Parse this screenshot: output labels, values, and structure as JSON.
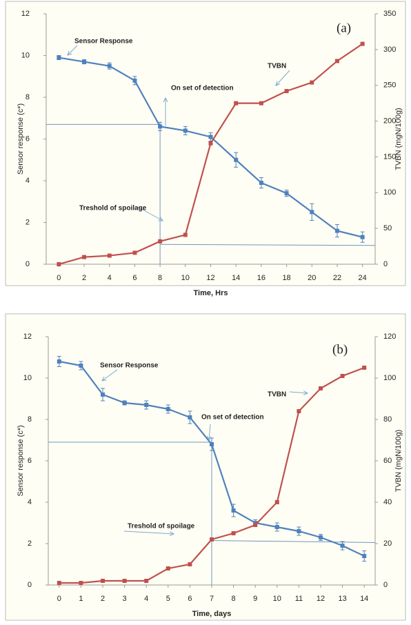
{
  "chart_data": [
    {
      "type": "line",
      "x": [
        0,
        2,
        4,
        6,
        8,
        10,
        12,
        14,
        16,
        18,
        20,
        22,
        24
      ],
      "xlim": [
        -1,
        25
      ],
      "xticks": [
        0,
        2,
        4,
        6,
        8,
        10,
        12,
        14,
        16,
        18,
        20,
        22,
        24
      ],
      "ylim": [
        0,
        12
      ],
      "yticks": [
        0,
        2,
        4,
        6,
        8,
        10,
        12
      ],
      "y2lim": [
        0,
        350
      ],
      "y2ticks": [
        0,
        50,
        100,
        150,
        200,
        250,
        300,
        350
      ],
      "xlabel": "Time, Hrs",
      "ylabel": "Sensor response (c*)",
      "y2label": "TVBN (mgN/100g)",
      "series": [
        {
          "name": "Sensor Response",
          "color": "#4f81bd",
          "values": [
            9.9,
            9.7,
            9.5,
            8.8,
            6.6,
            6.4,
            6.1,
            5.0,
            3.9,
            3.4,
            2.5,
            1.6,
            1.3
          ],
          "errors": [
            0.1,
            0.1,
            0.15,
            0.2,
            0.2,
            0.2,
            0.2,
            0.35,
            0.25,
            0.15,
            0.4,
            0.3,
            0.25
          ]
        },
        {
          "name": "TVBN",
          "color": "#c0504d",
          "axis": "y2",
          "values": [
            0,
            10,
            12,
            16,
            32,
            41,
            169,
            225,
            225,
            242,
            254,
            284,
            308
          ]
        }
      ],
      "reference_lines": [
        {
          "x": [
            -1,
            8,
            8
          ],
          "y": [
            6.7,
            6.7,
            0
          ]
        },
        {
          "x": [
            8,
            25
          ],
          "y": [
            0.95,
            0.9
          ]
        }
      ],
      "annotations": [
        "(a)",
        "Sensor Response",
        "TVBN",
        "On set of detection",
        "Treshold of spoilage"
      ]
    },
    {
      "type": "line",
      "x": [
        0,
        1,
        2,
        3,
        4,
        5,
        6,
        7,
        8,
        9,
        10,
        11,
        12,
        13,
        14
      ],
      "xlim": [
        -0.5,
        14.5
      ],
      "xticks": [
        0,
        1,
        2,
        3,
        4,
        5,
        6,
        7,
        8,
        9,
        10,
        11,
        12,
        13,
        14
      ],
      "ylim": [
        0,
        12
      ],
      "yticks": [
        0,
        2,
        4,
        6,
        8,
        10,
        12
      ],
      "y2lim": [
        0,
        120
      ],
      "y2ticks": [
        0,
        20,
        40,
        60,
        80,
        100,
        120
      ],
      "xlabel": "Time, days",
      "ylabel": "Sensor response (c*)",
      "y2label": "TVBN (mgN/100g)",
      "series": [
        {
          "name": "Sensor Response",
          "color": "#4f81bd",
          "values": [
            10.8,
            10.6,
            9.2,
            8.8,
            8.7,
            8.5,
            8.1,
            6.8,
            3.6,
            3.0,
            2.8,
            2.6,
            2.3,
            1.9,
            1.4
          ],
          "errors": [
            0.25,
            0.2,
            0.3,
            0.1,
            0.2,
            0.2,
            0.3,
            0.3,
            0.3,
            0.15,
            0.2,
            0.2,
            0.15,
            0.2,
            0.25
          ]
        },
        {
          "name": "TVBN",
          "color": "#c0504d",
          "axis": "y2",
          "values": [
            1,
            1,
            2,
            2,
            2,
            8,
            10,
            22,
            25,
            29,
            40,
            84,
            95,
            101,
            105
          ]
        }
      ],
      "reference_lines": [
        {
          "x": [
            -0.5,
            7,
            7
          ],
          "y": [
            6.9,
            6.9,
            0
          ]
        },
        {
          "x": [
            7,
            14.5
          ],
          "y": [
            2.15,
            2.05
          ]
        }
      ],
      "annotations": [
        "(b)",
        "Sensor Response",
        "TVBN",
        "On set of detection",
        "Treshold of spoilage"
      ]
    }
  ]
}
